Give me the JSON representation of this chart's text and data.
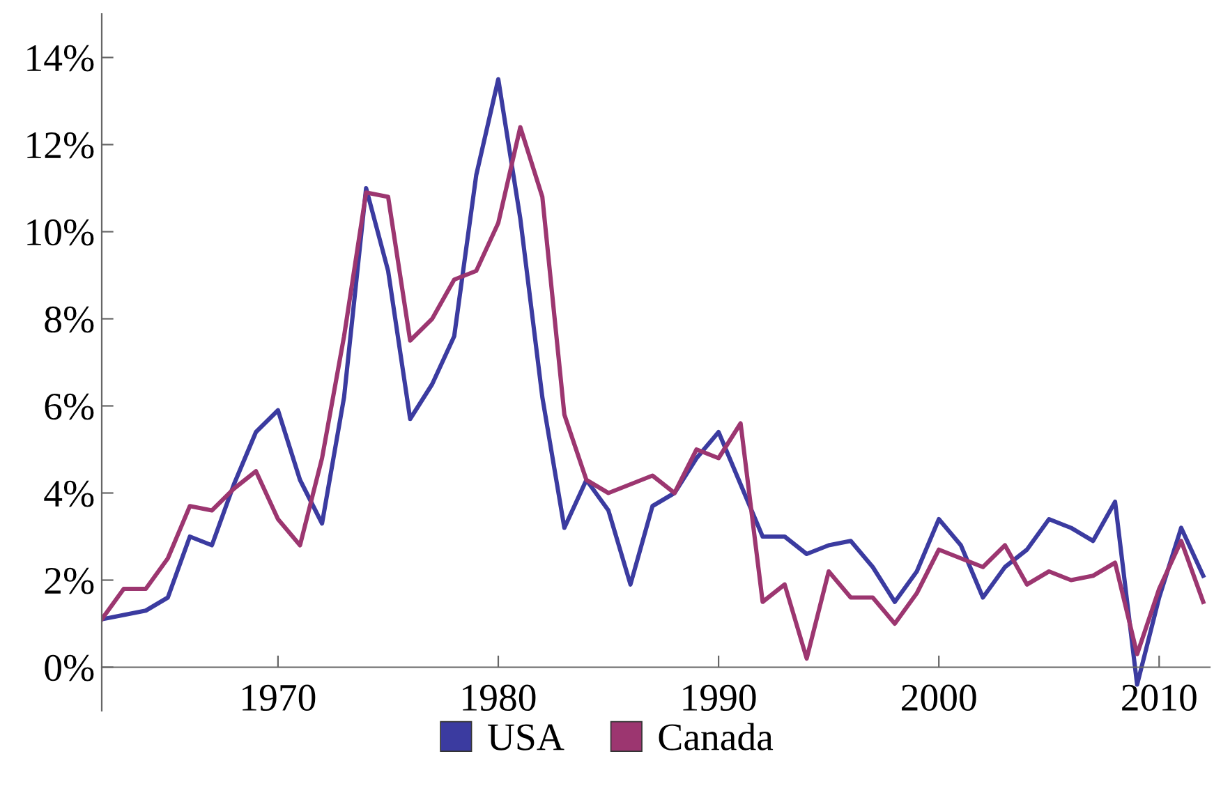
{
  "chart_data": {
    "type": "line",
    "x": [
      1962,
      1963,
      1964,
      1965,
      1966,
      1967,
      1968,
      1969,
      1970,
      1971,
      1972,
      1973,
      1974,
      1975,
      1976,
      1977,
      1978,
      1979,
      1980,
      1981,
      1982,
      1983,
      1984,
      1985,
      1986,
      1987,
      1988,
      1989,
      1990,
      1991,
      1992,
      1993,
      1994,
      1995,
      1996,
      1997,
      1998,
      1999,
      2000,
      2001,
      2002,
      2003,
      2004,
      2005,
      2006,
      2007,
      2008,
      2009,
      2010,
      2011,
      2012
    ],
    "series": [
      {
        "name": "USA",
        "color": "#3b3ba0",
        "values": [
          1.1,
          1.2,
          1.3,
          1.6,
          3.0,
          2.8,
          4.2,
          5.4,
          5.9,
          4.3,
          3.3,
          6.2,
          11.0,
          9.1,
          5.7,
          6.5,
          7.6,
          11.3,
          13.5,
          10.3,
          6.2,
          3.2,
          4.3,
          3.6,
          1.9,
          3.7,
          4.0,
          4.8,
          5.4,
          4.2,
          3.0,
          3.0,
          2.6,
          2.8,
          2.9,
          2.3,
          1.5,
          2.2,
          3.4,
          2.8,
          1.6,
          2.3,
          2.7,
          3.4,
          3.2,
          2.9,
          3.8,
          -0.4,
          1.6,
          3.2,
          2.1
        ]
      },
      {
        "name": "Canada",
        "color": "#9c3670",
        "values": [
          1.1,
          1.8,
          1.8,
          2.5,
          3.7,
          3.6,
          4.1,
          4.5,
          3.4,
          2.8,
          4.8,
          7.6,
          10.9,
          10.8,
          7.5,
          8.0,
          8.9,
          9.1,
          10.2,
          12.4,
          10.8,
          5.8,
          4.3,
          4.0,
          4.2,
          4.4,
          4.0,
          5.0,
          4.8,
          5.6,
          1.5,
          1.9,
          0.2,
          2.2,
          1.6,
          1.6,
          1.0,
          1.7,
          2.7,
          2.5,
          2.3,
          2.8,
          1.9,
          2.2,
          2.0,
          2.1,
          2.4,
          0.3,
          1.8,
          2.9,
          1.5
        ]
      }
    ],
    "xlim": [
      1962,
      2012.3
    ],
    "xticks": [
      1970,
      1980,
      1990,
      2000,
      2010
    ],
    "ylim": [
      -1,
      15
    ],
    "yticks": [
      {
        "value": 0,
        "label": "0%"
      },
      {
        "value": 2,
        "label": "2%"
      },
      {
        "value": 4,
        "label": "4%"
      },
      {
        "value": 6,
        "label": "6%"
      },
      {
        "value": 8,
        "label": "8%"
      },
      {
        "value": 10,
        "label": "10%"
      },
      {
        "value": 12,
        "label": "12%"
      },
      {
        "value": 14,
        "label": "14%"
      }
    ],
    "grid": false,
    "legend": "bottom",
    "marker": "none",
    "line_style": "solid"
  }
}
